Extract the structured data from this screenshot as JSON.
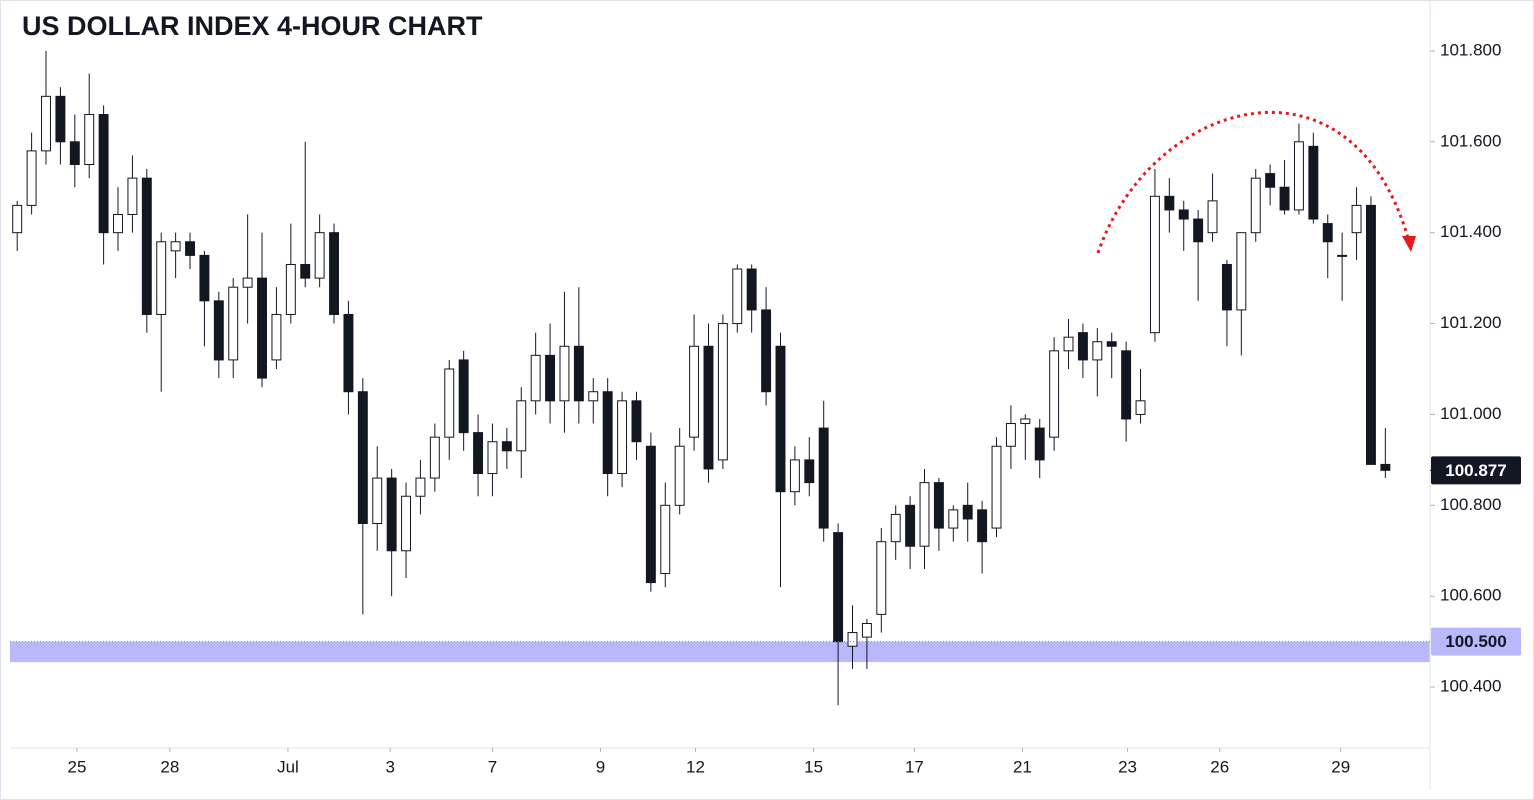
{
  "chart_data": {
    "type": "candlestick",
    "title": "US DOLLAR INDEX 4-HOUR CHART",
    "up_color": "#ffffff",
    "down_color": "#131722",
    "open": [
      101.4,
      101.46,
      101.58,
      101.7,
      101.6,
      101.55,
      101.66,
      101.4,
      101.44,
      101.52,
      101.22,
      101.36,
      101.38,
      101.35,
      101.25,
      101.12,
      101.28,
      101.3,
      101.12,
      101.22,
      101.33,
      101.3,
      101.4,
      101.22,
      101.05,
      100.76,
      100.86,
      100.7,
      100.82,
      100.86,
      100.95,
      101.12,
      100.96,
      100.87,
      100.94,
      100.92,
      101.03,
      101.13,
      101.03,
      101.15,
      101.03,
      101.05,
      100.87,
      101.03,
      100.93,
      100.65,
      100.8,
      100.95,
      101.15,
      100.9,
      101.2,
      101.32,
      101.23,
      101.15,
      100.83,
      100.9,
      100.97,
      100.74,
      100.49,
      100.51,
      100.56,
      100.72,
      100.8,
      100.71,
      100.85,
      100.75,
      100.8,
      100.79,
      100.75,
      100.93,
      100.98,
      100.97,
      100.95,
      101.14,
      101.18,
      101.12,
      101.16,
      101.14,
      101.0,
      101.18,
      101.48,
      101.45,
      101.43,
      101.4,
      101.33,
      101.23,
      101.4,
      101.53,
      101.5,
      101.45,
      101.59,
      101.42,
      101.35,
      101.4,
      101.46,
      100.89
    ],
    "high": [
      101.47,
      101.62,
      101.8,
      101.72,
      101.66,
      101.75,
      101.68,
      101.5,
      101.57,
      101.54,
      101.4,
      101.4,
      101.4,
      101.36,
      101.27,
      101.3,
      101.44,
      101.4,
      101.28,
      101.42,
      101.6,
      101.44,
      101.42,
      101.25,
      101.08,
      100.93,
      100.88,
      100.85,
      100.9,
      100.98,
      101.12,
      101.14,
      101.0,
      100.98,
      100.97,
      101.06,
      101.18,
      101.2,
      101.27,
      101.28,
      101.08,
      101.08,
      101.05,
      101.05,
      100.96,
      100.85,
      100.97,
      101.22,
      101.2,
      101.22,
      101.33,
      101.33,
      101.28,
      101.18,
      100.93,
      100.95,
      101.03,
      100.76,
      100.58,
      100.55,
      100.75,
      100.8,
      100.82,
      100.88,
      100.86,
      100.8,
      100.85,
      100.81,
      100.95,
      101.02,
      101.0,
      100.99,
      101.17,
      101.21,
      101.2,
      101.19,
      101.18,
      101.16,
      101.1,
      101.54,
      101.52,
      101.47,
      101.45,
      101.53,
      101.34,
      101.4,
      101.54,
      101.55,
      101.56,
      101.64,
      101.62,
      101.44,
      101.4,
      101.5,
      101.48,
      100.97
    ],
    "low": [
      101.36,
      101.44,
      101.55,
      101.55,
      101.5,
      101.52,
      101.33,
      101.36,
      101.4,
      101.18,
      101.05,
      101.3,
      101.32,
      101.15,
      101.08,
      101.08,
      101.2,
      101.06,
      101.1,
      101.2,
      101.28,
      101.28,
      101.2,
      101.0,
      100.56,
      100.7,
      100.6,
      100.64,
      100.78,
      100.83,
      100.9,
      100.92,
      100.82,
      100.82,
      100.88,
      100.86,
      101.0,
      100.98,
      100.96,
      100.98,
      100.98,
      100.82,
      100.84,
      100.9,
      100.61,
      100.62,
      100.78,
      100.92,
      100.85,
      100.88,
      101.18,
      101.18,
      101.02,
      100.62,
      100.8,
      100.82,
      100.72,
      100.36,
      100.44,
      100.44,
      100.52,
      100.68,
      100.66,
      100.66,
      100.7,
      100.72,
      100.72,
      100.65,
      100.73,
      100.88,
      100.9,
      100.86,
      100.92,
      101.1,
      101.08,
      101.04,
      101.08,
      100.94,
      100.98,
      101.16,
      101.4,
      101.36,
      101.25,
      101.38,
      101.15,
      101.13,
      101.38,
      101.46,
      101.44,
      101.44,
      101.42,
      101.3,
      101.25,
      101.34,
      100.89,
      100.86
    ],
    "close": [
      101.46,
      101.58,
      101.7,
      101.6,
      101.55,
      101.66,
      101.4,
      101.44,
      101.52,
      101.22,
      101.38,
      101.38,
      101.35,
      101.25,
      101.12,
      101.28,
      101.3,
      101.08,
      101.22,
      101.33,
      101.3,
      101.4,
      101.22,
      101.05,
      100.76,
      100.86,
      100.7,
      100.82,
      100.86,
      100.95,
      101.1,
      100.96,
      100.87,
      100.94,
      100.92,
      101.03,
      101.13,
      101.03,
      101.15,
      101.03,
      101.05,
      100.87,
      101.03,
      100.94,
      100.63,
      100.8,
      100.93,
      101.15,
      100.88,
      101.2,
      101.32,
      101.23,
      101.05,
      100.83,
      100.9,
      100.85,
      100.75,
      100.5,
      100.52,
      100.54,
      100.72,
      100.78,
      100.71,
      100.85,
      100.75,
      100.79,
      100.77,
      100.72,
      100.93,
      100.98,
      100.99,
      100.9,
      101.14,
      101.17,
      101.12,
      101.16,
      101.15,
      100.99,
      101.03,
      101.48,
      101.45,
      101.43,
      101.38,
      101.47,
      101.23,
      101.4,
      101.52,
      101.5,
      101.45,
      101.6,
      101.43,
      101.38,
      101.35,
      101.46,
      100.89,
      100.877
    ],
    "xlim": [
      0,
      98.6
    ],
    "xticks": [
      {
        "value": 4.65,
        "label": "25"
      },
      {
        "value": 11.1,
        "label": "28"
      },
      {
        "value": 19.3,
        "label": "Jul"
      },
      {
        "value": 26.4,
        "label": "3"
      },
      {
        "value": 33.5,
        "label": "7"
      },
      {
        "value": 41.0,
        "label": "9"
      },
      {
        "value": 47.6,
        "label": "12"
      },
      {
        "value": 55.8,
        "label": "15"
      },
      {
        "value": 62.8,
        "label": "17"
      },
      {
        "value": 70.3,
        "label": "21"
      },
      {
        "value": 77.6,
        "label": "23"
      },
      {
        "value": 84.0,
        "label": "26"
      },
      {
        "value": 92.4,
        "label": "29"
      }
    ],
    "ylim": [
      100.266,
      101.912
    ],
    "yticks": [
      {
        "value": 101.8,
        "label": "101.800"
      },
      {
        "value": 101.6,
        "label": "101.600"
      },
      {
        "value": 101.4,
        "label": "101.400"
      },
      {
        "value": 101.2,
        "label": "101.200"
      },
      {
        "value": 101.0,
        "label": "101.000"
      },
      {
        "value": 100.8,
        "label": "100.800"
      },
      {
        "value": 100.6,
        "label": "100.600"
      },
      {
        "value": 100.4,
        "label": "100.400"
      }
    ],
    "support_zone": [
      100.455,
      100.5
    ],
    "support_label": {
      "value": 100.5,
      "label": "100.500"
    },
    "support_color": "#b9b8fb"
  }
}
